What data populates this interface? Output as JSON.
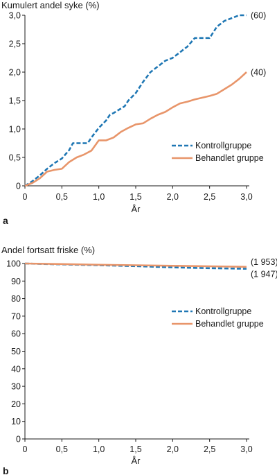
{
  "chart_data": [
    {
      "panel_label": "a",
      "type": "line",
      "title": "Kumulert andel syke (%)",
      "xlabel": "År",
      "ylabel": "",
      "xlim": [
        0,
        3.0
      ],
      "ylim": [
        0,
        3.0
      ],
      "x_ticks": [
        "0",
        "0,5",
        "1,0",
        "1,5",
        "2,0",
        "2,5",
        "3,0"
      ],
      "y_ticks": [
        "0",
        "0,5",
        "1,0",
        "1,5",
        "2,0",
        "2,5",
        "3,0"
      ],
      "legend_position": "lower-right",
      "series": [
        {
          "name": "Kontrollgruppe",
          "color": "#1f77b4",
          "style": "dashed",
          "end_label": "(60)",
          "x": [
            0,
            0.1,
            0.2,
            0.3,
            0.4,
            0.5,
            0.6,
            0.65,
            0.7,
            0.75,
            0.8,
            0.85,
            0.9,
            1.0,
            1.1,
            1.15,
            1.2,
            1.3,
            1.35,
            1.4,
            1.5,
            1.6,
            1.7,
            1.8,
            1.9,
            2.0,
            2.1,
            2.15,
            2.2,
            2.3,
            2.4,
            2.5,
            2.6,
            2.7,
            2.8,
            2.9,
            3.0
          ],
          "values": [
            0,
            0.08,
            0.18,
            0.3,
            0.4,
            0.48,
            0.63,
            0.75,
            0.75,
            0.75,
            0.75,
            0.75,
            0.85,
            1.02,
            1.15,
            1.25,
            1.28,
            1.36,
            1.4,
            1.5,
            1.63,
            1.83,
            2.0,
            2.1,
            2.2,
            2.25,
            2.35,
            2.4,
            2.45,
            2.6,
            2.6,
            2.6,
            2.8,
            2.9,
            2.95,
            3.0,
            3.0
          ]
        },
        {
          "name": "Behandlet gruppe",
          "color": "#e8956a",
          "style": "solid",
          "end_label": "(40)",
          "x": [
            0,
            0.1,
            0.2,
            0.3,
            0.4,
            0.5,
            0.6,
            0.7,
            0.8,
            0.9,
            1.0,
            1.1,
            1.2,
            1.3,
            1.4,
            1.5,
            1.6,
            1.7,
            1.8,
            1.9,
            2.0,
            2.1,
            2.2,
            2.3,
            2.4,
            2.5,
            2.6,
            2.7,
            2.8,
            2.9,
            3.0
          ],
          "values": [
            0,
            0.05,
            0.13,
            0.25,
            0.28,
            0.3,
            0.42,
            0.5,
            0.55,
            0.62,
            0.8,
            0.8,
            0.85,
            0.95,
            1.02,
            1.08,
            1.1,
            1.18,
            1.25,
            1.3,
            1.38,
            1.45,
            1.48,
            1.52,
            1.55,
            1.58,
            1.62,
            1.7,
            1.78,
            1.88,
            2.0
          ]
        }
      ]
    },
    {
      "panel_label": "b",
      "type": "line",
      "title": "Andel fortsatt friske (%)",
      "xlabel": "År",
      "ylabel": "",
      "xlim": [
        0,
        3.0
      ],
      "ylim": [
        0,
        100
      ],
      "x_ticks": [
        "0",
        "0,5",
        "1,0",
        "1,5",
        "2,0",
        "2,5",
        "3,0"
      ],
      "y_ticks": [
        "0",
        "10",
        "20",
        "30",
        "40",
        "50",
        "60",
        "70",
        "80",
        "90",
        "100"
      ],
      "legend_position": "middle-right",
      "series": [
        {
          "name": "Kontrollgruppe",
          "color": "#1f77b4",
          "style": "dashed",
          "end_label": "(1 947)",
          "x": [
            0,
            0.5,
            1.0,
            1.5,
            2.0,
            2.5,
            3.0
          ],
          "values": [
            100,
            99.5,
            99,
            98.5,
            97.8,
            97.3,
            97
          ]
        },
        {
          "name": "Behandlet gruppe",
          "color": "#e8956a",
          "style": "solid",
          "end_label": "(1 953)",
          "x": [
            0,
            0.5,
            1.0,
            1.5,
            2.0,
            2.5,
            3.0
          ],
          "values": [
            100,
            99.7,
            99.3,
            99.0,
            98.7,
            98.4,
            98.1
          ]
        }
      ]
    }
  ]
}
